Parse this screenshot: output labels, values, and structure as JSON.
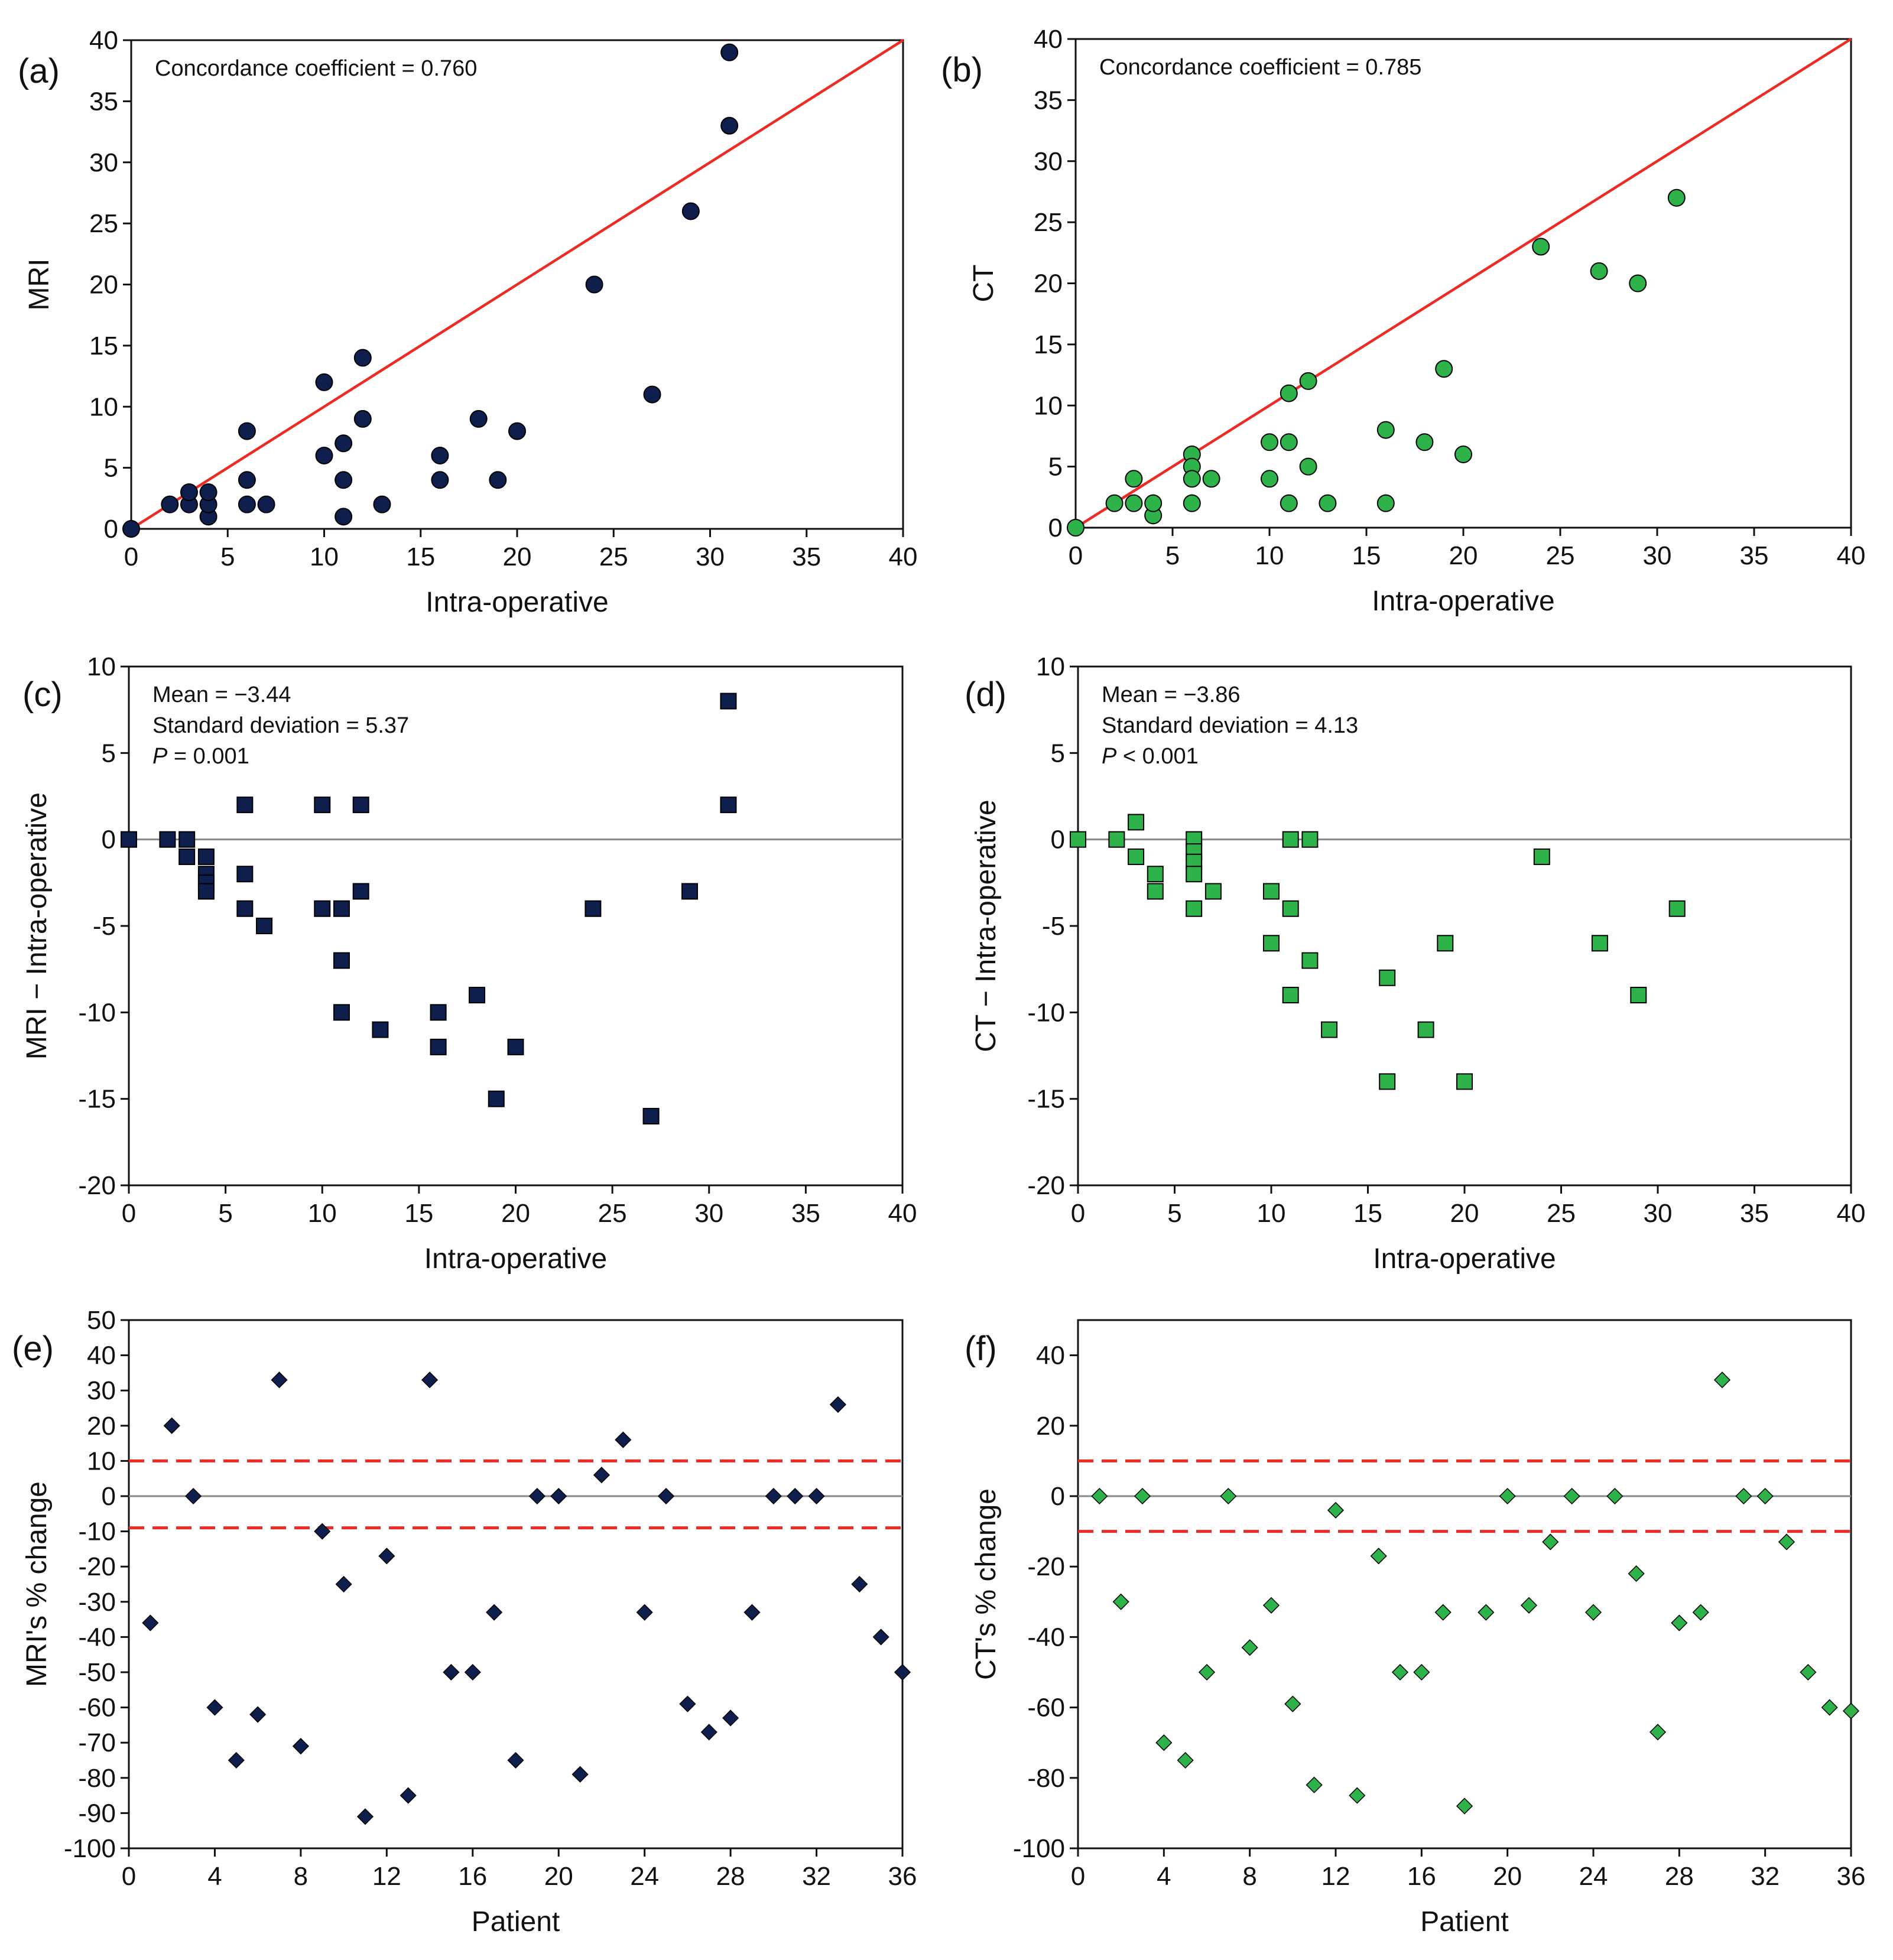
{
  "colors": {
    "navy": "#0f1f4d",
    "green": "#2db34a",
    "red": "#ee2a24",
    "axis": "#111111",
    "zero": "#888888"
  },
  "chart_data": [
    {
      "id": "a",
      "type": "scatter",
      "panel_label": "(a)",
      "annotation": [
        "Concordance coefficient = 0.760"
      ],
      "xlabel": "Intra-operative",
      "ylabel": "MRI",
      "xlim": [
        0,
        40
      ],
      "ylim": [
        0,
        40
      ],
      "xticks": [
        0,
        5,
        10,
        15,
        20,
        25,
        30,
        35,
        40
      ],
      "yticks": [
        0,
        5,
        10,
        15,
        20,
        25,
        30,
        35,
        40
      ],
      "marker": "circle",
      "color_key": "navy",
      "identity_line": true,
      "points": [
        [
          0,
          0
        ],
        [
          2,
          2
        ],
        [
          3,
          2
        ],
        [
          3,
          3
        ],
        [
          4,
          1
        ],
        [
          4,
          2
        ],
        [
          4,
          3
        ],
        [
          6,
          8
        ],
        [
          6,
          4
        ],
        [
          6,
          2
        ],
        [
          7,
          2
        ],
        [
          10,
          12
        ],
        [
          10,
          6
        ],
        [
          11,
          7
        ],
        [
          11,
          4
        ],
        [
          11,
          1
        ],
        [
          12,
          14
        ],
        [
          12,
          9
        ],
        [
          13,
          2
        ],
        [
          16,
          6
        ],
        [
          16,
          4
        ],
        [
          18,
          9
        ],
        [
          19,
          4
        ],
        [
          20,
          8
        ],
        [
          24,
          20
        ],
        [
          27,
          11
        ],
        [
          29,
          26
        ],
        [
          31,
          39
        ],
        [
          31,
          33
        ]
      ]
    },
    {
      "id": "b",
      "type": "scatter",
      "panel_label": "(b)",
      "annotation": [
        "Concordance coefficient = 0.785"
      ],
      "xlabel": "Intra-operative",
      "ylabel": "CT",
      "xlim": [
        0,
        40
      ],
      "ylim": [
        0,
        40
      ],
      "xticks": [
        0,
        5,
        10,
        15,
        20,
        25,
        30,
        35,
        40
      ],
      "yticks": [
        0,
        5,
        10,
        15,
        20,
        25,
        30,
        35,
        40
      ],
      "marker": "circle",
      "color_key": "green",
      "identity_line": true,
      "points": [
        [
          0,
          0
        ],
        [
          2,
          2
        ],
        [
          3,
          2
        ],
        [
          3,
          4
        ],
        [
          4,
          1
        ],
        [
          4,
          2
        ],
        [
          6,
          6
        ],
        [
          6,
          5
        ],
        [
          6,
          4
        ],
        [
          6,
          2
        ],
        [
          7,
          4
        ],
        [
          10,
          7
        ],
        [
          10,
          4
        ],
        [
          11,
          11
        ],
        [
          11,
          7
        ],
        [
          11,
          2
        ],
        [
          12,
          12
        ],
        [
          12,
          5
        ],
        [
          13,
          2
        ],
        [
          16,
          8
        ],
        [
          16,
          2
        ],
        [
          18,
          7
        ],
        [
          19,
          13
        ],
        [
          20,
          6
        ],
        [
          24,
          23
        ],
        [
          27,
          21
        ],
        [
          29,
          20
        ],
        [
          31,
          27
        ]
      ]
    },
    {
      "id": "c",
      "type": "scatter",
      "panel_label": "(c)",
      "annotation": [
        "Mean = −3.44",
        "Standard deviation = 5.37",
        "P = 0.001"
      ],
      "xlabel": "Intra-operative",
      "ylabel": "MRI − Intra-operative",
      "xlim": [
        0,
        40
      ],
      "ylim": [
        -20,
        10
      ],
      "xticks": [
        0,
        5,
        10,
        15,
        20,
        25,
        30,
        35,
        40
      ],
      "yticks": [
        -20,
        -15,
        -10,
        -5,
        0,
        5,
        10
      ],
      "marker": "square",
      "color_key": "navy",
      "zero_line": true,
      "points": [
        [
          0,
          0
        ],
        [
          2,
          0
        ],
        [
          3,
          0
        ],
        [
          3,
          -1
        ],
        [
          4,
          -1
        ],
        [
          4,
          -2
        ],
        [
          4,
          -2.5
        ],
        [
          4,
          -3
        ],
        [
          6,
          2
        ],
        [
          6,
          -2
        ],
        [
          6,
          -4
        ],
        [
          7,
          -5
        ],
        [
          10,
          2
        ],
        [
          10,
          -4
        ],
        [
          11,
          -4
        ],
        [
          11,
          -7
        ],
        [
          11,
          -10
        ],
        [
          12,
          2
        ],
        [
          12,
          -3
        ],
        [
          13,
          -11
        ],
        [
          16,
          -10
        ],
        [
          16,
          -12
        ],
        [
          18,
          -9
        ],
        [
          19,
          -15
        ],
        [
          20,
          -12
        ],
        [
          24,
          -4
        ],
        [
          27,
          -16
        ],
        [
          29,
          -3
        ],
        [
          31,
          8
        ],
        [
          31,
          2
        ]
      ]
    },
    {
      "id": "d",
      "type": "scatter",
      "panel_label": "(d)",
      "annotation": [
        "Mean = −3.86",
        "Standard deviation = 4.13",
        "P < 0.001"
      ],
      "xlabel": "Intra-operative",
      "ylabel": "CT − Intra-operative",
      "xlim": [
        0,
        40
      ],
      "ylim": [
        -20,
        10
      ],
      "xticks": [
        0,
        5,
        10,
        15,
        20,
        25,
        30,
        35,
        40
      ],
      "yticks": [
        -20,
        -15,
        -10,
        -5,
        0,
        5,
        10
      ],
      "marker": "square",
      "color_key": "green",
      "zero_line": true,
      "points": [
        [
          0,
          0
        ],
        [
          2,
          0
        ],
        [
          3,
          1
        ],
        [
          3,
          -1
        ],
        [
          4,
          -2
        ],
        [
          4,
          -3
        ],
        [
          6,
          0
        ],
        [
          6,
          -0.7
        ],
        [
          6,
          -1.3
        ],
        [
          6,
          -2
        ],
        [
          6,
          -4
        ],
        [
          7,
          -3
        ],
        [
          10,
          -3
        ],
        [
          10,
          -6
        ],
        [
          11,
          0
        ],
        [
          11,
          -4
        ],
        [
          11,
          -9
        ],
        [
          12,
          0
        ],
        [
          12,
          -7
        ],
        [
          13,
          -11
        ],
        [
          16,
          -8
        ],
        [
          16,
          -14
        ],
        [
          18,
          -11
        ],
        [
          19,
          -6
        ],
        [
          20,
          -14
        ],
        [
          24,
          -1
        ],
        [
          27,
          -6
        ],
        [
          29,
          -9
        ],
        [
          31,
          -4
        ]
      ]
    },
    {
      "id": "e",
      "type": "scatter",
      "panel_label": "(e)",
      "annotation": [],
      "xlabel": "Patient",
      "ylabel": "MRI's % change",
      "xlim": [
        0,
        36
      ],
      "ylim": [
        -100,
        50
      ],
      "xticks": [
        0,
        4,
        8,
        12,
        16,
        20,
        24,
        28,
        32,
        36
      ],
      "yticks": [
        -100,
        -90,
        -80,
        -70,
        -60,
        -50,
        -40,
        -30,
        -20,
        -10,
        0,
        10,
        20,
        30,
        40,
        50
      ],
      "marker": "diamond",
      "color_key": "navy",
      "zero_line": true,
      "threshold_lines": [
        10,
        -9
      ],
      "points": [
        [
          1,
          -36
        ],
        [
          2,
          20
        ],
        [
          3,
          0
        ],
        [
          4,
          -60
        ],
        [
          5,
          -75
        ],
        [
          6,
          -62
        ],
        [
          7,
          33
        ],
        [
          8,
          -71
        ],
        [
          9,
          -10
        ],
        [
          10,
          -25
        ],
        [
          11,
          -91
        ],
        [
          12,
          -17
        ],
        [
          13,
          -85
        ],
        [
          14,
          33
        ],
        [
          15,
          -50
        ],
        [
          16,
          -50
        ],
        [
          17,
          -33
        ],
        [
          18,
          -75
        ],
        [
          19,
          0
        ],
        [
          20,
          0
        ],
        [
          21,
          -79
        ],
        [
          22,
          6
        ],
        [
          23,
          16
        ],
        [
          24,
          -33
        ],
        [
          25,
          0
        ],
        [
          26,
          -59
        ],
        [
          27,
          -67
        ],
        [
          28,
          -63
        ],
        [
          29,
          -33
        ],
        [
          30,
          0
        ],
        [
          31,
          0
        ],
        [
          32,
          0
        ],
        [
          33,
          26
        ],
        [
          34,
          -25
        ],
        [
          35,
          -40
        ],
        [
          36,
          -50
        ]
      ]
    },
    {
      "id": "f",
      "type": "scatter",
      "panel_label": "(f)",
      "annotation": [],
      "xlabel": "Patient",
      "ylabel": "CT's % change",
      "xlim": [
        0,
        36
      ],
      "ylim": [
        -100,
        50
      ],
      "xticks": [
        0,
        4,
        8,
        12,
        16,
        20,
        24,
        28,
        32,
        36
      ],
      "yticks": [
        -100,
        -80,
        -60,
        -40,
        -20,
        0,
        20,
        40
      ],
      "marker": "diamond",
      "color_key": "green",
      "zero_line": true,
      "threshold_lines": [
        10,
        -10
      ],
      "points": [
        [
          1,
          0
        ],
        [
          2,
          -30
        ],
        [
          3,
          0
        ],
        [
          4,
          -70
        ],
        [
          5,
          -75
        ],
        [
          6,
          -50
        ],
        [
          7,
          0
        ],
        [
          8,
          -43
        ],
        [
          9,
          -31
        ],
        [
          10,
          -59
        ],
        [
          11,
          -82
        ],
        [
          12,
          -4
        ],
        [
          13,
          -85
        ],
        [
          14,
          -17
        ],
        [
          15,
          -50
        ],
        [
          16,
          -50
        ],
        [
          17,
          -33
        ],
        [
          18,
          -88
        ],
        [
          19,
          -33
        ],
        [
          20,
          0
        ],
        [
          21,
          -31
        ],
        [
          22,
          -13
        ],
        [
          23,
          0
        ],
        [
          24,
          -33
        ],
        [
          25,
          0
        ],
        [
          26,
          -22
        ],
        [
          27,
          -67
        ],
        [
          28,
          -36
        ],
        [
          29,
          -33
        ],
        [
          30,
          33
        ],
        [
          31,
          0
        ],
        [
          32,
          0
        ],
        [
          33,
          -13
        ],
        [
          34,
          -50
        ],
        [
          35,
          -60
        ],
        [
          36,
          -61
        ]
      ]
    }
  ]
}
